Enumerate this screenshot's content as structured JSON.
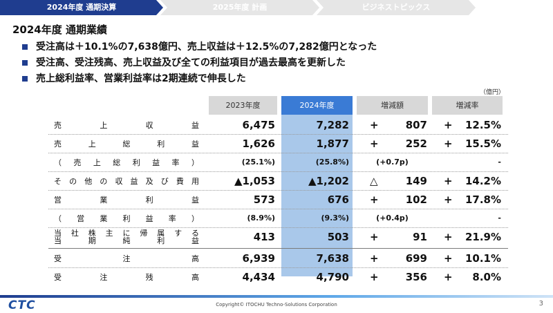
{
  "tabs": [
    {
      "label": "2024年度 通期決算"
    },
    {
      "label": "2025年度 計画"
    },
    {
      "label": "ビジネストピックス"
    }
  ],
  "title": "2024年度 通期業績",
  "bullets": [
    "受注高は＋10.1%の7,638億円、売上収益は＋12.5%の7,282億円となった",
    "受注高、受注残高、売上収益及び全ての利益項目が過去最高を更新した",
    "売上総利益率、営業利益率は2期連続で伸長した"
  ],
  "unit": "（億円）",
  "table": {
    "headers": {
      "y2023": "2023年度",
      "y2024": "2024年度",
      "diff": "増減額",
      "rate": "増減率"
    },
    "rows": [
      {
        "label": "売上収益",
        "y2023": "6,475",
        "y2024": "7,282",
        "diff_sign": "+",
        "diff": "807",
        "rate_sign": "+",
        "rate": "12.5%"
      },
      {
        "label": "売上総利益",
        "y2023": "1,626",
        "y2024": "1,877",
        "diff_sign": "+",
        "diff": "252",
        "rate_sign": "+",
        "rate": "15.5%"
      },
      {
        "label": "（売上総利益率）",
        "y2023": "(25.1%)",
        "y2024": "(25.8%)",
        "diff": "(+0.7p)",
        "rate": "-"
      },
      {
        "label": "その他の収益及び費用",
        "y2023": "▲1,053",
        "y2024": "▲1,202",
        "diff_sign": "△",
        "diff": "149",
        "rate_sign": "+",
        "rate": "14.2%"
      },
      {
        "label": "営業利益",
        "y2023": "573",
        "y2024": "676",
        "diff_sign": "+",
        "diff": "102",
        "rate_sign": "+",
        "rate": "17.8%"
      },
      {
        "label": "（営業利益率）",
        "y2023": "(8.9%)",
        "y2024": "(9.3%)",
        "diff": "(+0.4p)",
        "rate": "-"
      },
      {
        "label_line1": "当社株主に帰属する",
        "label_line2": "当期純利益",
        "y2023": "413",
        "y2024": "503",
        "diff_sign": "+",
        "diff": "91",
        "rate_sign": "+",
        "rate": "21.9%"
      },
      {
        "label": "受注高",
        "y2023": "6,939",
        "y2024": "7,638",
        "diff_sign": "+",
        "diff": "699",
        "rate_sign": "+",
        "rate": "10.1%"
      },
      {
        "label": "受注残高",
        "y2023": "4,434",
        "y2024": "4,790",
        "diff_sign": "+",
        "diff": "356",
        "rate_sign": "+",
        "rate": "8.0%"
      }
    ]
  },
  "footer": {
    "logo": "CTC",
    "copyright": "Copyright© ITOCHU Techno-Solutions Corporation",
    "page": "3"
  },
  "colors": {
    "brand": "#1f3d8f",
    "accent": "#3a7bd5",
    "highlight": "#a9c8ea",
    "header_gray": "#d8d8d8"
  }
}
